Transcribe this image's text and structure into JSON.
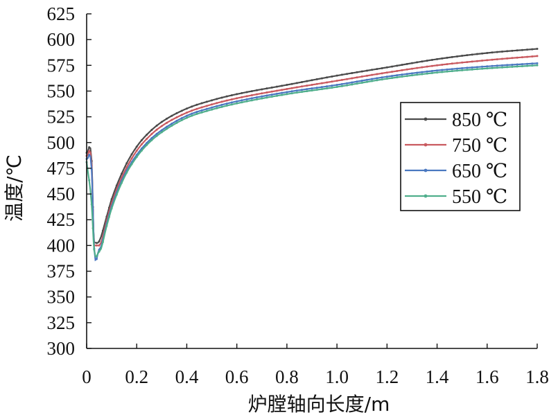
{
  "chart_data": {
    "type": "line",
    "title": "",
    "xlabel": "炉膛轴向长度/m",
    "ylabel": "温度/℃",
    "xlim": [
      0,
      1.8
    ],
    "ylim": [
      300,
      625
    ],
    "x_ticks": [
      "0",
      "0.2",
      "0.4",
      "0.6",
      "0.8",
      "1.0",
      "1.2",
      "1.4",
      "1.6",
      "1.8"
    ],
    "y_ticks": [
      "300",
      "325",
      "350",
      "375",
      "400",
      "425",
      "450",
      "475",
      "500",
      "525",
      "550",
      "575",
      "600",
      "625"
    ],
    "grid": false,
    "legend_position": "right",
    "series": [
      {
        "name": "850 ℃",
        "color": "#4a4a4a",
        "x": [
          0,
          0.02,
          0.03,
          0.05,
          0.08,
          0.1,
          0.15,
          0.2,
          0.25,
          0.3,
          0.4,
          0.5,
          0.6,
          0.8,
          1.0,
          1.2,
          1.4,
          1.6,
          1.8
        ],
        "y": [
          490,
          482,
          403,
          404,
          428,
          445,
          475,
          496,
          510,
          520,
          533,
          541,
          547,
          556,
          565,
          573,
          581,
          587,
          591
        ]
      },
      {
        "name": "750 ℃",
        "color": "#c9595f",
        "x": [
          0,
          0.02,
          0.03,
          0.05,
          0.08,
          0.1,
          0.15,
          0.2,
          0.25,
          0.3,
          0.4,
          0.5,
          0.6,
          0.8,
          1.0,
          1.2,
          1.4,
          1.6,
          1.8
        ],
        "y": [
          487,
          478,
          400,
          400,
          424,
          441,
          471,
          492,
          506,
          516,
          529,
          537,
          543,
          552,
          560,
          568,
          575,
          580,
          584
        ]
      },
      {
        "name": "650 ℃",
        "color": "#4a78c0",
        "x": [
          0,
          0.02,
          0.03,
          0.05,
          0.08,
          0.1,
          0.15,
          0.2,
          0.25,
          0.3,
          0.4,
          0.5,
          0.6,
          0.8,
          1.0,
          1.2,
          1.4,
          1.6,
          1.8
        ],
        "y": [
          484,
          474,
          397,
          396,
          421,
          438,
          468,
          488,
          502,
          512,
          526,
          534,
          540,
          549,
          556,
          564,
          570,
          574,
          577
        ]
      },
      {
        "name": "550 ℃",
        "color": "#4fae8c",
        "x": [
          0,
          0.02,
          0.03,
          0.05,
          0.08,
          0.1,
          0.15,
          0.2,
          0.25,
          0.3,
          0.4,
          0.5,
          0.6,
          0.8,
          1.0,
          1.2,
          1.4,
          1.6,
          1.8
        ],
        "y": [
          481,
          440,
          396,
          394,
          419,
          436,
          466,
          486,
          500,
          510,
          524,
          532,
          538,
          547,
          554,
          562,
          568,
          572,
          575
        ]
      }
    ]
  }
}
